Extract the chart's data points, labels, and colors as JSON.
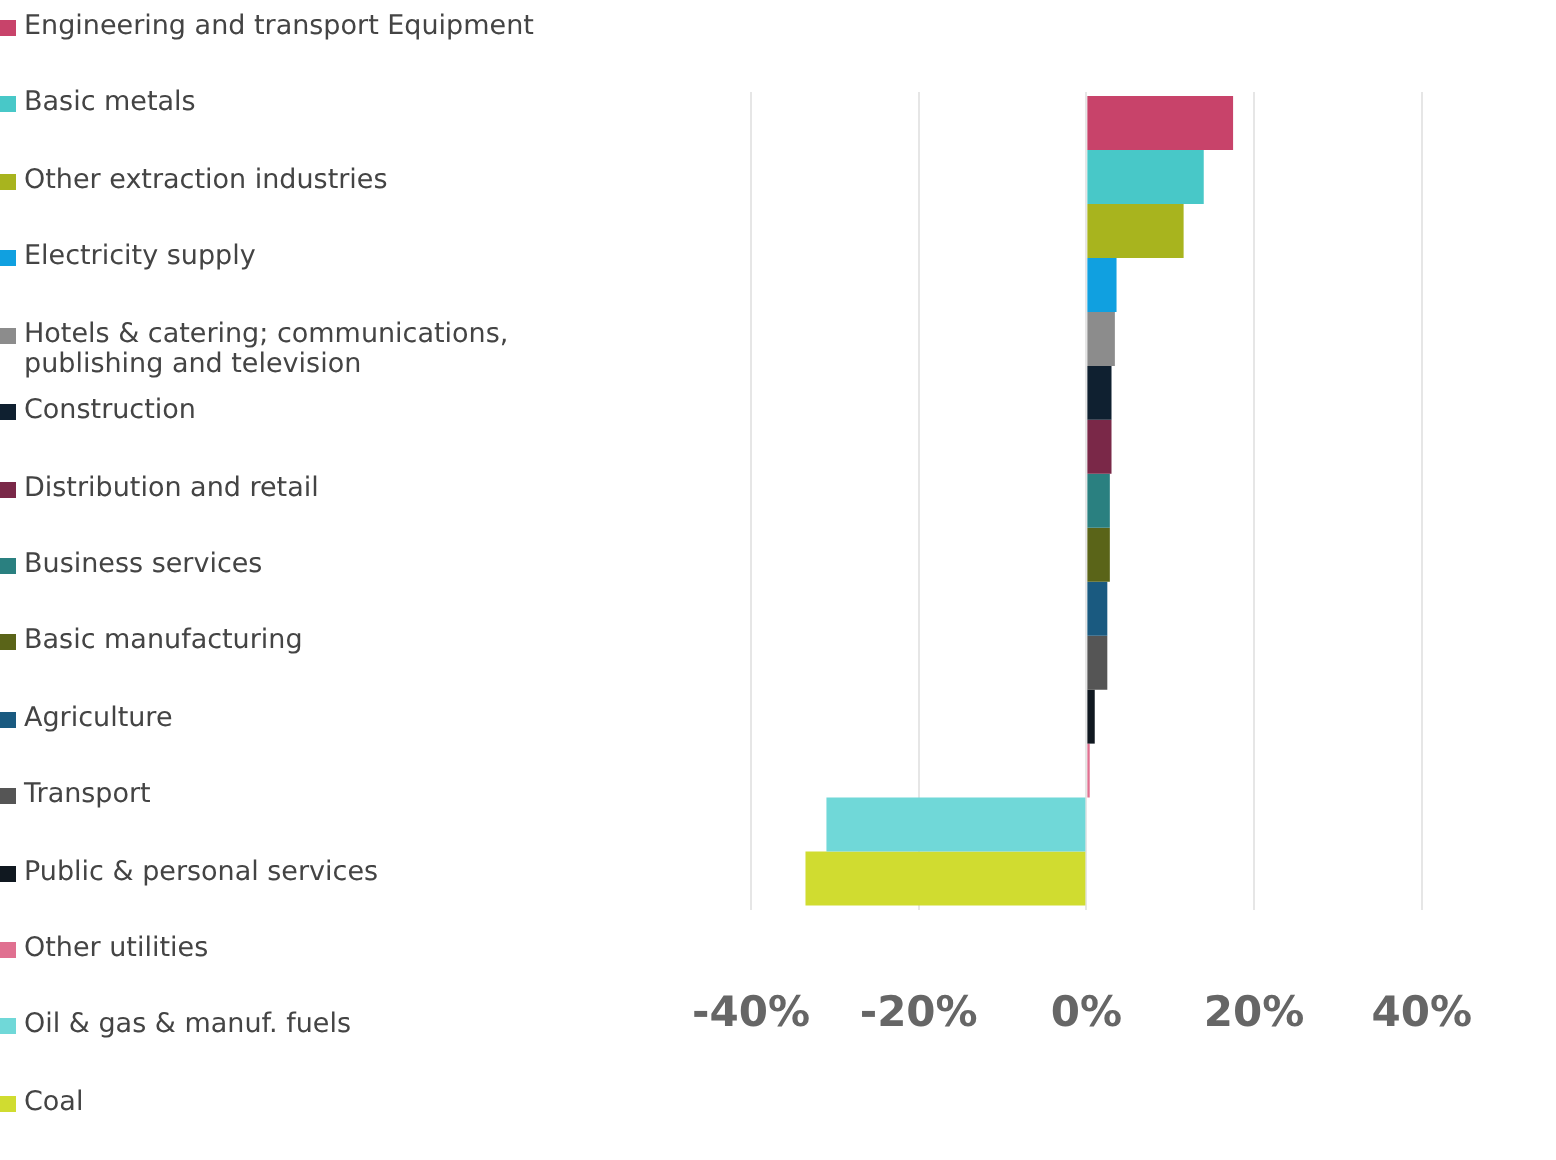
{
  "chart_data": {
    "type": "bar",
    "orientation": "horizontal",
    "categories": [
      null
    ],
    "series": [
      {
        "name": "Engineering and transport Equipment",
        "color": "#c8436a",
        "values": [
          17.5
        ]
      },
      {
        "name": "Basic metals",
        "color": "#48c8c8",
        "values": [
          14
        ]
      },
      {
        "name": "Other extraction industries",
        "color": "#a8b41e",
        "values": [
          11.6
        ]
      },
      {
        "name": "Electricity supply",
        "color": "#10a0e0",
        "values": [
          3.6
        ]
      },
      {
        "name": "Hotels & catering; communications, publishing and television",
        "color": "#8c8c8c",
        "values": [
          3.4
        ]
      },
      {
        "name": "Construction",
        "color": "#0f2030",
        "values": [
          3
        ]
      },
      {
        "name": "Distribution and retail",
        "color": "#7a2848",
        "values": [
          3
        ]
      },
      {
        "name": "Business services",
        "color": "#2a8080",
        "values": [
          2.8
        ]
      },
      {
        "name": "Basic manufacturing",
        "color": "#5a6418",
        "values": [
          2.8
        ]
      },
      {
        "name": "Agriculture",
        "color": "#1a5a80",
        "values": [
          2.5
        ]
      },
      {
        "name": "Transport",
        "color": "#555555",
        "values": [
          2.5
        ]
      },
      {
        "name": "Public & personal services",
        "color": "#101820",
        "values": [
          1
        ]
      },
      {
        "name": "Other utilities",
        "color": "#e07090",
        "values": [
          0.4
        ]
      },
      {
        "name": "Oil & gas & manuf. fuels",
        "color": "#70d8d8",
        "values": [
          -31
        ]
      },
      {
        "name": "Coal",
        "color": "#d0dc30",
        "values": [
          -33.5
        ]
      }
    ],
    "xlim": [
      -40,
      40
    ],
    "xticks": [
      {
        "value": -40,
        "label": "-40%"
      },
      {
        "value": -20,
        "label": "-20%"
      },
      {
        "value": 0,
        "label": "0%"
      },
      {
        "value": 20,
        "label": "20%"
      },
      {
        "value": 40,
        "label": "40%"
      }
    ],
    "grid": "x",
    "legend": "left"
  }
}
